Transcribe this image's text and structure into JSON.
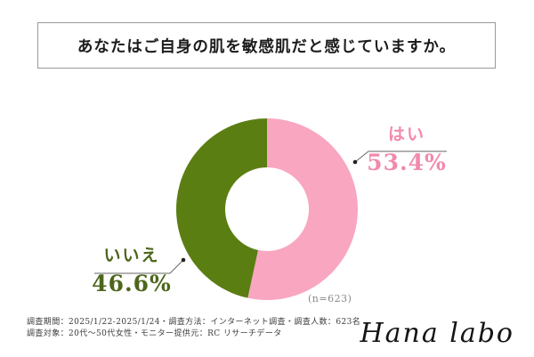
{
  "title": {
    "text": "あなたはご自身の肌を敏感肌だと感じていますか。"
  },
  "chart_data": {
    "type": "pie",
    "subtype": "donut",
    "title": "あなたはご自身の肌を敏感肌だと感じていますか。",
    "categories": [
      "はい",
      "いいえ"
    ],
    "values": [
      53.4,
      46.6
    ],
    "unit": "%",
    "colors": [
      "#F9A6C1",
      "#5B7E13"
    ],
    "label_colors": [
      "#F289AE",
      "#4D661C"
    ],
    "start_angle_deg": 0,
    "direction": "clockwise",
    "inner_radius_ratio": 0.46,
    "sample_note": "(n=623)",
    "labels": [
      {
        "name": "はい",
        "value_text": "53.4%"
      },
      {
        "name": "いいえ",
        "value_text": "46.6%"
      }
    ],
    "legend_position": "callout-labels"
  },
  "footer": {
    "line1": "調査期間：2025/1/22-2025/1/24・調査方法：インターネット調査・調査人数：623名",
    "line2": "調査対象：20代～50代女性・モニター提供元：RC リサーチデータ",
    "logo": "Hana labo"
  }
}
